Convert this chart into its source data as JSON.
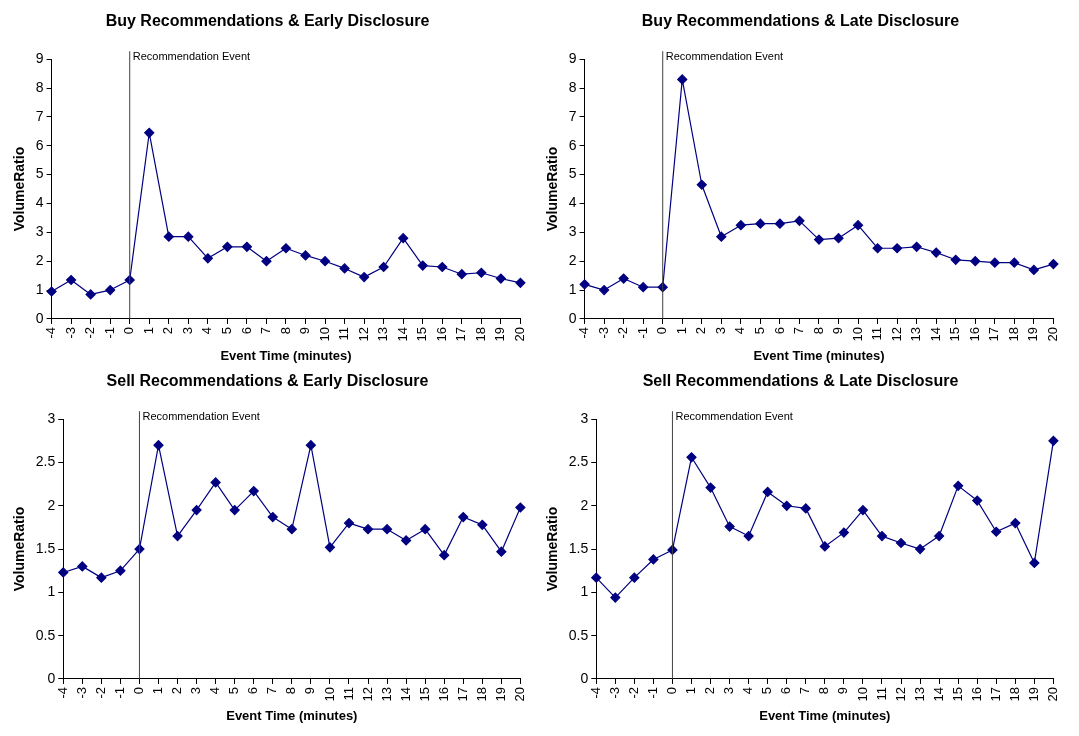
{
  "chart_data": [
    {
      "type": "line",
      "title": "Buy Recommendations & Early Disclosure",
      "xlabel": "Event Time (minutes)",
      "ylabel": "VolumeRatio",
      "categories": [
        "-4",
        "-3",
        "-2",
        "-1",
        "0",
        "1",
        "2",
        "3",
        "4",
        "5",
        "6",
        "7",
        "8",
        "9",
        "10",
        "11",
        "12",
        "13",
        "14",
        "15",
        "16",
        "17",
        "18",
        "19",
        "20"
      ],
      "series": [
        {
          "color": "#000080",
          "values": [
            0.95,
            1.35,
            0.85,
            1.0,
            1.35,
            6.45,
            2.85,
            2.85,
            2.1,
            2.5,
            2.5,
            2.0,
            2.45,
            2.2,
            2.0,
            1.75,
            1.45,
            1.8,
            2.8,
            1.85,
            1.8,
            1.55,
            1.6,
            1.4,
            1.25
          ]
        }
      ],
      "ylim": [
        0,
        9
      ],
      "yticks": [
        0,
        1,
        2,
        3,
        4,
        5,
        6,
        7,
        8,
        9
      ],
      "grid": false,
      "legend": false,
      "marker": "diamond",
      "line_style": "solid",
      "ref_lines": [
        {
          "axis": "x",
          "value": "0",
          "label": "Recommendation Event",
          "color": "#404040"
        }
      ]
    },
    {
      "type": "line",
      "title": "Buy Recommendations & Late Disclosure",
      "xlabel": "Event Time (minutes)",
      "ylabel": "VolumeRatio",
      "categories": [
        "-4",
        "-3",
        "-2",
        "-1",
        "0",
        "1",
        "2",
        "3",
        "4",
        "5",
        "6",
        "7",
        "8",
        "9",
        "10",
        "11",
        "12",
        "13",
        "14",
        "15",
        "16",
        "17",
        "18",
        "19",
        "20"
      ],
      "series": [
        {
          "color": "#000080",
          "values": [
            1.2,
            1.0,
            1.4,
            1.1,
            1.1,
            8.3,
            4.65,
            2.85,
            3.25,
            3.3,
            3.3,
            3.4,
            2.75,
            2.8,
            3.25,
            2.45,
            2.45,
            2.5,
            2.3,
            2.05,
            2.0,
            1.95,
            1.95,
            1.7,
            1.9
          ]
        }
      ],
      "ylim": [
        0,
        9
      ],
      "yticks": [
        0,
        1,
        2,
        3,
        4,
        5,
        6,
        7,
        8,
        9
      ],
      "grid": false,
      "legend": false,
      "marker": "diamond",
      "line_style": "solid",
      "ref_lines": [
        {
          "axis": "x",
          "value": "0",
          "label": "Recommendation Event",
          "color": "#404040"
        }
      ]
    },
    {
      "type": "line",
      "title": "Sell Recommendations & Early Disclosure",
      "xlabel": "Event Time (minutes)",
      "ylabel": "VolumeRatio",
      "categories": [
        "-4",
        "-3",
        "-2",
        "-1",
        "0",
        "1",
        "2",
        "3",
        "4",
        "5",
        "6",
        "7",
        "8",
        "9",
        "10",
        "11",
        "12",
        "13",
        "14",
        "15",
        "16",
        "17",
        "18",
        "19",
        "20"
      ],
      "series": [
        {
          "color": "#000080",
          "values": [
            1.23,
            1.3,
            1.17,
            1.25,
            1.5,
            2.7,
            1.65,
            1.95,
            2.27,
            1.95,
            2.17,
            1.87,
            1.73,
            2.7,
            1.52,
            1.8,
            1.73,
            1.73,
            1.6,
            1.73,
            1.43,
            1.87,
            1.78,
            1.47,
            1.98
          ]
        }
      ],
      "ylim": [
        0,
        3
      ],
      "yticks": [
        0,
        0.5,
        1,
        1.5,
        2,
        2.5,
        3
      ],
      "grid": false,
      "legend": false,
      "marker": "diamond",
      "line_style": "solid",
      "ref_lines": [
        {
          "axis": "x",
          "value": "0",
          "label": "Recommendation Event",
          "color": "#404040"
        }
      ]
    },
    {
      "type": "line",
      "title": "Sell Recommendations & Late Disclosure",
      "xlabel": "Event Time (minutes)",
      "ylabel": "VolumeRatio",
      "categories": [
        "-4",
        "-3",
        "-2",
        "-1",
        "0",
        "1",
        "2",
        "3",
        "4",
        "5",
        "6",
        "7",
        "8",
        "9",
        "10",
        "11",
        "12",
        "13",
        "14",
        "15",
        "16",
        "17",
        "18",
        "19",
        "20"
      ],
      "series": [
        {
          "color": "#000080",
          "values": [
            1.17,
            0.94,
            1.17,
            1.38,
            1.49,
            2.56,
            2.21,
            1.76,
            1.65,
            2.16,
            2.0,
            1.97,
            1.53,
            1.69,
            1.95,
            1.65,
            1.57,
            1.5,
            1.65,
            2.23,
            2.06,
            1.7,
            1.8,
            1.34,
            2.75
          ]
        }
      ],
      "ylim": [
        0,
        3
      ],
      "yticks": [
        0,
        0.5,
        1,
        1.5,
        2,
        2.5,
        3
      ],
      "grid": false,
      "legend": false,
      "marker": "diamond",
      "line_style": "solid",
      "ref_lines": [
        {
          "axis": "x",
          "value": "0",
          "label": "Recommendation Event",
          "color": "#404040"
        }
      ]
    }
  ]
}
